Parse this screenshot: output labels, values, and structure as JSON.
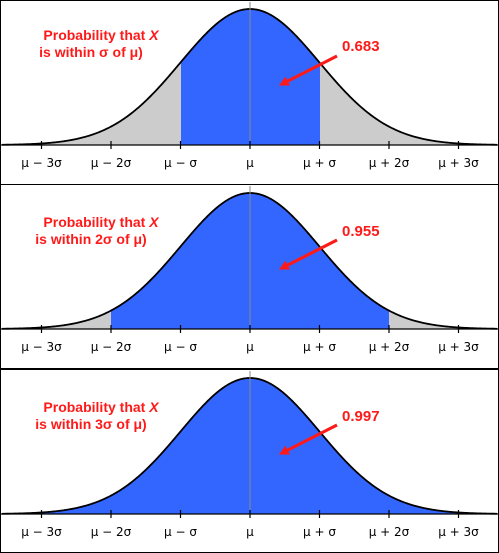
{
  "colors": {
    "highlight": "#3366ff",
    "tail": "#cccccc",
    "annotation": "#ff1a1a",
    "curve": "#000000"
  },
  "tick_labels": [
    "μ − 3σ",
    "μ − 2σ",
    "μ − σ",
    "μ",
    "μ + σ",
    "μ + 2σ",
    "μ + 3σ"
  ],
  "panels": [
    {
      "caption_prefix": "Probability that ",
      "caption_var": "X",
      "caption_line2": "is within σ of μ)",
      "value": "0.683",
      "sigma_range": 1
    },
    {
      "caption_prefix": "Probability that ",
      "caption_var": "X",
      "caption_line2": "is within 2σ of μ)",
      "value": "0.955",
      "sigma_range": 2
    },
    {
      "caption_prefix": "Probability that ",
      "caption_var": "X",
      "caption_line2": "is within 3σ of μ)",
      "value": "0.997",
      "sigma_range": 3
    }
  ]
}
